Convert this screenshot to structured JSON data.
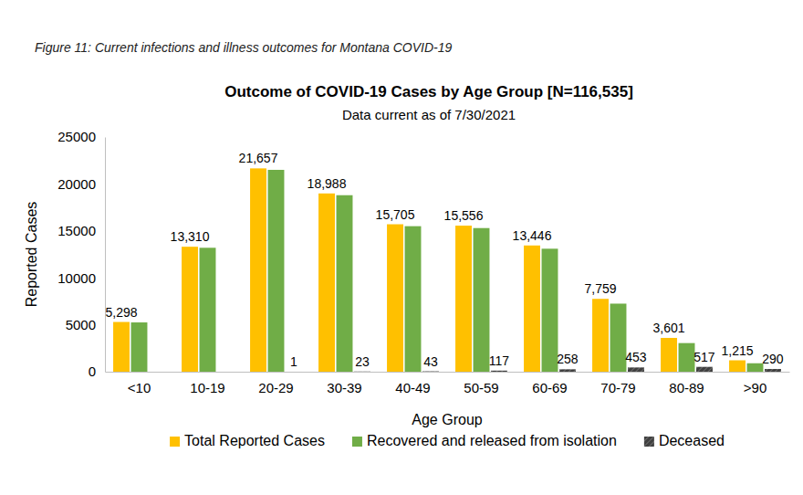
{
  "caption": "Figure 11: Current infections and illness outcomes for Montana COVID-19",
  "chart_data": {
    "type": "bar",
    "title": "Outcome of COVID-19 Cases by Age Group [N=116,535]",
    "subtitle": "Data current as of 7/30/2021",
    "x_label": "Age Group",
    "y_label": "Reported Cases",
    "categories": [
      "<10",
      "10-19",
      "20-29",
      "30-39",
      "40-49",
      "50-59",
      "60-69",
      "70-79",
      "80-89",
      ">90"
    ],
    "series": [
      {
        "name": "Total Reported Cases",
        "color": "#ffc000",
        "data_labels": true,
        "values": [
          5298,
          13310,
          21657,
          18988,
          15705,
          15556,
          13446,
          7759,
          3601,
          1215
        ],
        "value_labels": [
          "5,298",
          "13,310",
          "21,657",
          "18,988",
          "15,705",
          "15,556",
          "13,446",
          "7,759",
          "3,601",
          "1,215"
        ]
      },
      {
        "name": "Recovered and released from isolation",
        "color": "#70ad47",
        "data_labels": false,
        "values": [
          5250,
          13200,
          21500,
          18800,
          15500,
          15300,
          13100,
          7250,
          3050,
          900
        ]
      },
      {
        "name": "Deceased",
        "color": "#404040",
        "data_labels": true,
        "values": [
          null,
          null,
          1,
          23,
          43,
          117,
          258,
          453,
          517,
          290
        ]
      }
    ],
    "ylim": [
      0,
      25000
    ],
    "yticks": [
      0,
      5000,
      10000,
      15000,
      20000,
      25000
    ],
    "grid": false,
    "legend": "bottom"
  }
}
